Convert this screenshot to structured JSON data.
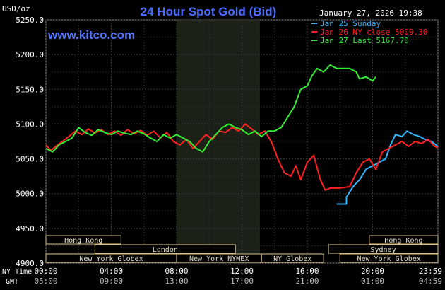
{
  "header": {
    "units": "USD/oz",
    "title": "24 Hour Spot Gold (Bid)",
    "timestamp": "January 27, 2026 19:38",
    "watermark": "www.kitco.com"
  },
  "legend": [
    {
      "label": "Jan 25 Sunday",
      "color": "#33b5ff"
    },
    {
      "label": "Jan 26 NY close 5009.30",
      "color": "#ff2020"
    },
    {
      "label": "Jan 27 Last 5167.70",
      "color": "#33ee33"
    }
  ],
  "chart_data": {
    "type": "line",
    "title": "24 Hour Spot Gold (Bid)",
    "ylabel": "USD/oz",
    "ylim": [
      4900,
      5250
    ],
    "yticks": [
      "5250.0",
      "5200.0",
      "5150.0",
      "5100.0",
      "5050.0",
      "5000.0",
      "4950.0",
      "4900.0"
    ],
    "x_range_hours": [
      0,
      24
    ],
    "ny_time_ticks": [
      "00:00",
      "04:00",
      "08:00",
      "12:00",
      "16:00",
      "20:00",
      "23:59"
    ],
    "gmt_ticks": [
      "05:00",
      "09:00",
      "13:00",
      "17:00",
      "21:00",
      "01:00",
      "04:59"
    ],
    "ny_time_label": "NY Time",
    "gmt_label": "GMT",
    "highlight_band_hours": [
      8.0,
      13.1
    ],
    "grid": true,
    "series": [
      {
        "name": "Jan 25 Sunday",
        "color": "#33b5ff",
        "points": [
          [
            17.8,
            4985
          ],
          [
            18.4,
            4985
          ],
          [
            18.4,
            4995
          ],
          [
            18.8,
            5010
          ],
          [
            19.2,
            5020
          ],
          [
            19.6,
            5035
          ],
          [
            20.0,
            5040
          ],
          [
            20.4,
            5045
          ],
          [
            20.8,
            5050
          ],
          [
            21.1,
            5070
          ],
          [
            21.4,
            5085
          ],
          [
            21.8,
            5082
          ],
          [
            22.1,
            5090
          ],
          [
            22.5,
            5085
          ],
          [
            22.9,
            5082
          ],
          [
            23.2,
            5078
          ],
          [
            23.6,
            5075
          ],
          [
            24.0,
            5068
          ]
        ]
      },
      {
        "name": "Jan 26 NY close 5009.30",
        "color": "#ff2020",
        "points": [
          [
            0.0,
            5070
          ],
          [
            0.3,
            5062
          ],
          [
            0.6,
            5068
          ],
          [
            1.0,
            5075
          ],
          [
            1.4,
            5082
          ],
          [
            1.8,
            5090
          ],
          [
            2.2,
            5085
          ],
          [
            2.6,
            5093
          ],
          [
            3.0,
            5087
          ],
          [
            3.4,
            5092
          ],
          [
            3.8,
            5085
          ],
          [
            4.2,
            5090
          ],
          [
            4.6,
            5084
          ],
          [
            5.0,
            5092
          ],
          [
            5.4,
            5086
          ],
          [
            5.8,
            5091
          ],
          [
            6.2,
            5084
          ],
          [
            6.6,
            5090
          ],
          [
            7.0,
            5080
          ],
          [
            7.4,
            5088
          ],
          [
            7.8,
            5075
          ],
          [
            8.2,
            5070
          ],
          [
            8.6,
            5078
          ],
          [
            9.0,
            5065
          ],
          [
            9.4,
            5075
          ],
          [
            9.8,
            5085
          ],
          [
            10.2,
            5078
          ],
          [
            10.6,
            5090
          ],
          [
            11.0,
            5088
          ],
          [
            11.4,
            5095
          ],
          [
            11.8,
            5090
          ],
          [
            12.2,
            5100
          ],
          [
            12.6,
            5093
          ],
          [
            13.0,
            5085
          ],
          [
            13.4,
            5090
          ],
          [
            13.8,
            5075
          ],
          [
            14.2,
            5050
          ],
          [
            14.6,
            5030
          ],
          [
            15.0,
            5025
          ],
          [
            15.3,
            5040
          ],
          [
            15.6,
            5020
          ],
          [
            16.0,
            5045
          ],
          [
            16.4,
            5055
          ],
          [
            16.8,
            5020
          ],
          [
            17.1,
            5005
          ],
          [
            17.4,
            5008
          ],
          [
            18.0,
            5008
          ],
          [
            18.6,
            5010
          ],
          [
            19.0,
            5030
          ],
          [
            19.4,
            5045
          ],
          [
            19.8,
            5050
          ],
          [
            20.2,
            5035
          ],
          [
            20.6,
            5060
          ],
          [
            21.0,
            5065
          ],
          [
            21.4,
            5070
          ],
          [
            21.8,
            5075
          ],
          [
            22.2,
            5068
          ],
          [
            22.6,
            5075
          ],
          [
            23.0,
            5072
          ],
          [
            23.4,
            5078
          ],
          [
            23.8,
            5068
          ],
          [
            24.0,
            5066
          ]
        ]
      },
      {
        "name": "Jan 27 Last 5167.70",
        "color": "#33ee33",
        "points": [
          [
            0.0,
            5065
          ],
          [
            0.4,
            5060
          ],
          [
            0.8,
            5070
          ],
          [
            1.2,
            5075
          ],
          [
            1.6,
            5080
          ],
          [
            2.0,
            5095
          ],
          [
            2.4,
            5088
          ],
          [
            2.8,
            5084
          ],
          [
            3.2,
            5092
          ],
          [
            3.6,
            5088
          ],
          [
            4.0,
            5085
          ],
          [
            4.4,
            5090
          ],
          [
            4.8,
            5087
          ],
          [
            5.2,
            5085
          ],
          [
            5.6,
            5090
          ],
          [
            6.0,
            5086
          ],
          [
            6.4,
            5080
          ],
          [
            6.8,
            5075
          ],
          [
            7.2,
            5085
          ],
          [
            7.6,
            5080
          ],
          [
            8.0,
            5085
          ],
          [
            8.4,
            5080
          ],
          [
            8.8,
            5075
          ],
          [
            9.2,
            5065
          ],
          [
            9.6,
            5060
          ],
          [
            10.0,
            5075
          ],
          [
            10.4,
            5085
          ],
          [
            10.8,
            5095
          ],
          [
            11.2,
            5100
          ],
          [
            11.6,
            5095
          ],
          [
            12.0,
            5092
          ],
          [
            12.4,
            5085
          ],
          [
            12.8,
            5090
          ],
          [
            13.2,
            5082
          ],
          [
            13.6,
            5090
          ],
          [
            14.0,
            5090
          ],
          [
            14.4,
            5095
          ],
          [
            14.8,
            5110
          ],
          [
            15.2,
            5125
          ],
          [
            15.6,
            5150
          ],
          [
            16.0,
            5155
          ],
          [
            16.3,
            5170
          ],
          [
            16.6,
            5180
          ],
          [
            17.0,
            5175
          ],
          [
            17.4,
            5185
          ],
          [
            17.8,
            5180
          ],
          [
            18.2,
            5180
          ],
          [
            18.6,
            5180
          ],
          [
            19.0,
            5175
          ],
          [
            19.2,
            5165
          ],
          [
            19.6,
            5168
          ],
          [
            20.0,
            5162
          ],
          [
            20.2,
            5168
          ]
        ]
      }
    ],
    "market_sessions": [
      {
        "name": "Hong Kong",
        "start": 0.0,
        "end": 4.6,
        "row": 0
      },
      {
        "name": "London",
        "start": 3.0,
        "end": 11.6,
        "row": 1
      },
      {
        "name": "New York Globex",
        "start": 0.0,
        "end": 8.0,
        "row": 2
      },
      {
        "name": "New York NYMEX",
        "start": 8.0,
        "end": 13.2,
        "row": 2
      },
      {
        "name": "NY Globex",
        "start": 13.2,
        "end": 17.0,
        "row": 2
      },
      {
        "name": "Hong Kong",
        "start": 19.8,
        "end": 24.0,
        "row": 0
      },
      {
        "name": "Sydney",
        "start": 17.3,
        "end": 24.0,
        "row": 1
      },
      {
        "name": "New York Globex",
        "start": 18.0,
        "end": 24.0,
        "row": 2
      }
    ]
  }
}
